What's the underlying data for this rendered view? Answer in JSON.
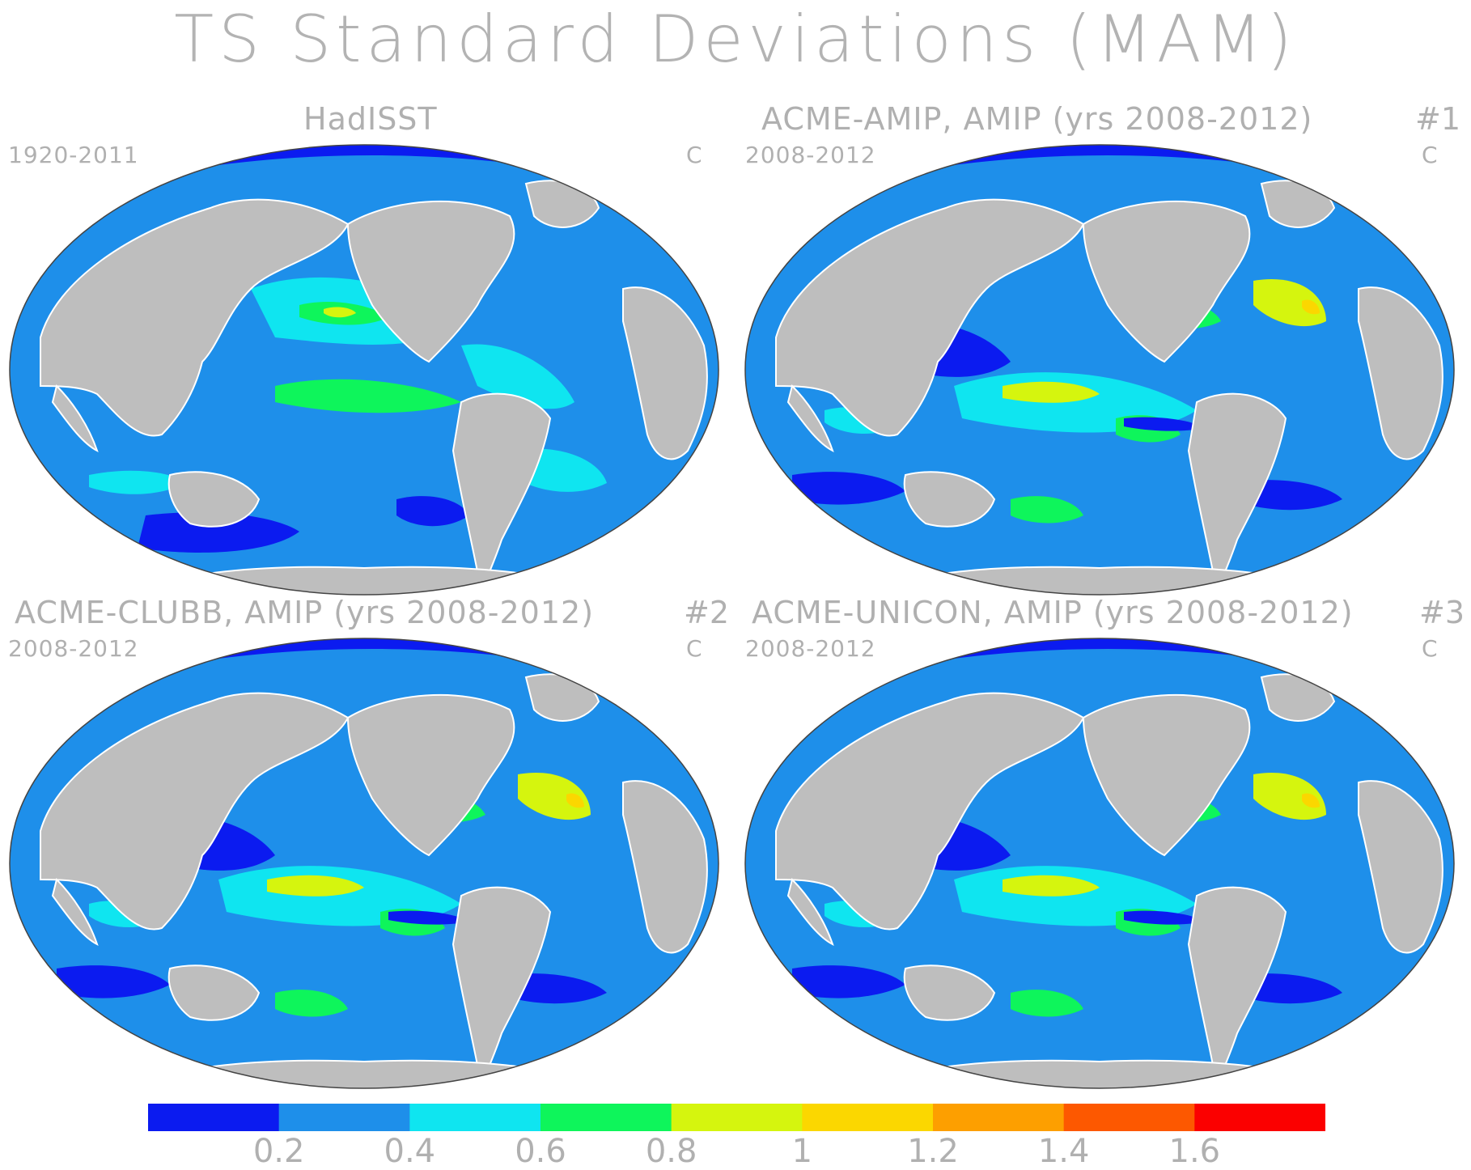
{
  "title": "TS Standard Deviations (MAM)",
  "panels": [
    {
      "title": "HadISST",
      "number": "",
      "years": "1920-2011",
      "units": "C"
    },
    {
      "title": "ACME-AMIP, AMIP (yrs 2008-2012)",
      "number": "#1",
      "years": "2008-2012",
      "units": "C"
    },
    {
      "title": "ACME-CLUBB, AMIP (yrs 2008-2012)",
      "number": "#2",
      "years": "2008-2012",
      "units": "C"
    },
    {
      "title": "ACME-UNICON, AMIP (yrs 2008-2012)",
      "number": "#3",
      "years": "2008-2012",
      "units": "C"
    }
  ],
  "colorbar": {
    "colors": [
      "#0b1bf0",
      "#1e8fea",
      "#0fe5f0",
      "#0ef55b",
      "#d5f50e",
      "#fbd700",
      "#fd9f00",
      "#fd5800",
      "#fb0000"
    ],
    "labels": [
      "0.2",
      "0.4",
      "0.6",
      "0.8",
      "1",
      "1.2",
      "1.4",
      "1.6"
    ]
  },
  "colors": {
    "land": "#bebebe",
    "coast": "#ffffff"
  }
}
